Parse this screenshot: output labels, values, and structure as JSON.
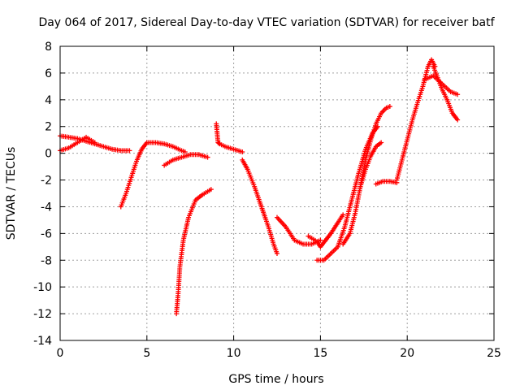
{
  "chart_data": {
    "type": "scatter",
    "title": "Day 064 of 2017, Sidereal Day-to-day VTEC variation (SDTVAR) for receiver batf",
    "xlabel": "GPS time / hours",
    "ylabel": "SDTVAR / TECUs",
    "xlim": [
      0,
      25
    ],
    "ylim": [
      -14,
      8
    ],
    "xticks": [
      0,
      5,
      10,
      15,
      20,
      25
    ],
    "yticks": [
      8,
      6,
      4,
      2,
      0,
      -2,
      -4,
      -6,
      -8,
      -10,
      -12,
      -14
    ],
    "grid": true,
    "legend": "none",
    "marker": "+",
    "color": "#ff0000",
    "series": [
      {
        "name": "track-1",
        "x": [
          0.0,
          0.5,
          1.0,
          1.5,
          2.0,
          2.5,
          3.0,
          3.5,
          4.0
        ],
        "y": [
          1.3,
          1.2,
          1.1,
          0.9,
          0.7,
          0.5,
          0.3,
          0.2,
          0.2
        ]
      },
      {
        "name": "track-2",
        "x": [
          0.0,
          0.5,
          1.0,
          1.5,
          2.0
        ],
        "y": [
          0.2,
          0.4,
          0.8,
          1.2,
          0.8
        ]
      },
      {
        "name": "track-3",
        "x": [
          3.5,
          3.8,
          4.1,
          4.4,
          4.7,
          5.0,
          5.5,
          6.0,
          6.5,
          7.0,
          7.2
        ],
        "y": [
          -4.0,
          -3.0,
          -1.8,
          -0.6,
          0.3,
          0.8,
          0.8,
          0.7,
          0.5,
          0.2,
          0.1
        ]
      },
      {
        "name": "track-4",
        "x": [
          6.0,
          6.5,
          7.0,
          7.5,
          8.0,
          8.5
        ],
        "y": [
          -0.9,
          -0.5,
          -0.3,
          -0.1,
          -0.1,
          -0.3
        ]
      },
      {
        "name": "track-5",
        "x": [
          6.7,
          6.8,
          6.9,
          7.1,
          7.4,
          7.8,
          8.2,
          8.7
        ],
        "y": [
          -12.0,
          -10.5,
          -8.5,
          -6.5,
          -4.8,
          -3.5,
          -3.1,
          -2.7
        ]
      },
      {
        "name": "track-6",
        "x": [
          9.0,
          9.05,
          9.1,
          9.2,
          9.5,
          10.0,
          10.5
        ],
        "y": [
          2.2,
          1.5,
          0.8,
          0.7,
          0.5,
          0.3,
          0.1
        ]
      },
      {
        "name": "track-7",
        "x": [
          10.5,
          10.8,
          11.2,
          11.6,
          12.0,
          12.3,
          12.5
        ],
        "y": [
          -0.5,
          -1.2,
          -2.5,
          -4.0,
          -5.5,
          -6.8,
          -7.5
        ]
      },
      {
        "name": "track-8",
        "x": [
          12.5,
          13.0,
          13.5,
          14.0,
          14.5,
          15.0
        ],
        "y": [
          -4.8,
          -5.5,
          -6.5,
          -6.8,
          -6.8,
          -6.5
        ]
      },
      {
        "name": "track-9",
        "x": [
          14.3,
          14.8,
          15.0,
          15.3,
          15.6,
          16.0,
          16.3
        ],
        "y": [
          -6.2,
          -6.6,
          -7.0,
          -6.5,
          -6.0,
          -5.2,
          -4.6
        ]
      },
      {
        "name": "track-10",
        "x": [
          14.8,
          15.2,
          15.6,
          16.0,
          16.4,
          16.8,
          17.2,
          17.6,
          18.0,
          18.3
        ],
        "y": [
          -8.0,
          -8.0,
          -7.5,
          -7.0,
          -5.5,
          -3.5,
          -1.5,
          0.3,
          1.5,
          2.0
        ]
      },
      {
        "name": "track-11",
        "x": [
          16.3,
          16.7,
          17.0,
          17.3,
          17.6,
          17.9,
          18.2,
          18.5,
          18.8,
          19.0
        ],
        "y": [
          -6.8,
          -6.0,
          -4.5,
          -2.5,
          -0.5,
          1.0,
          2.2,
          3.0,
          3.4,
          3.5
        ]
      },
      {
        "name": "track-12",
        "x": [
          17.3,
          17.6,
          17.9,
          18.2,
          18.5
        ],
        "y": [
          -2.5,
          -1.2,
          -0.2,
          0.5,
          0.8
        ]
      },
      {
        "name": "track-13",
        "x": [
          18.2,
          18.6,
          19.0,
          19.4
        ],
        "y": [
          -2.3,
          -2.1,
          -2.1,
          -2.2
        ]
      },
      {
        "name": "track-14",
        "x": [
          19.4,
          19.7,
          20.0,
          20.3,
          20.6,
          20.9,
          21.2,
          21.4,
          21.6
        ],
        "y": [
          -2.0,
          -0.5,
          1.0,
          2.5,
          3.8,
          5.0,
          6.5,
          7.0,
          6.5
        ]
      },
      {
        "name": "track-15",
        "x": [
          21.0,
          21.5,
          22.0,
          22.5,
          22.9
        ],
        "y": [
          5.5,
          5.8,
          5.2,
          4.6,
          4.4
        ]
      },
      {
        "name": "track-16",
        "x": [
          21.5,
          21.8,
          22.0,
          22.3,
          22.6,
          22.9
        ],
        "y": [
          6.5,
          5.5,
          4.8,
          4.0,
          3.0,
          2.5
        ]
      }
    ]
  }
}
